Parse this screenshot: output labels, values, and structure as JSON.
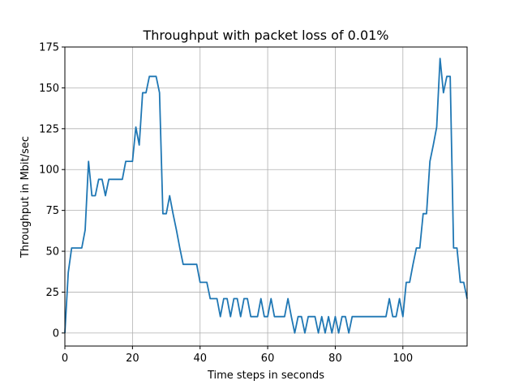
{
  "chart_data": {
    "type": "line",
    "title": "Throughput with packet loss of 0.01%",
    "xlabel": "Time steps in seconds",
    "ylabel": "Throughput in Mbit/sec",
    "xlim": [
      0,
      119
    ],
    "ylim": [
      -8,
      175
    ],
    "grid": true,
    "x_ticks": [
      0,
      20,
      40,
      60,
      80,
      100
    ],
    "y_ticks": [
      0,
      25,
      50,
      75,
      100,
      125,
      150,
      175
    ],
    "line_color": "#1f77b4",
    "series": [
      {
        "x": [
          0,
          1,
          2,
          3,
          4,
          5,
          6,
          7,
          8,
          9,
          10,
          11,
          12,
          13,
          14,
          15,
          16,
          17,
          18,
          19,
          20,
          21,
          22,
          23,
          24,
          25,
          26,
          27,
          28,
          29,
          30,
          31,
          32,
          33,
          34,
          35,
          36,
          37,
          38,
          39,
          40,
          41,
          42,
          43,
          44,
          45,
          46,
          47,
          48,
          49,
          50,
          51,
          52,
          53,
          54,
          55,
          56,
          57,
          58,
          59,
          60,
          61,
          62,
          63,
          64,
          65,
          66,
          67,
          68,
          69,
          70,
          71,
          72,
          73,
          74,
          75,
          76,
          77,
          78,
          79,
          80,
          81,
          82,
          83,
          84,
          85,
          86,
          87,
          88,
          89,
          90,
          91,
          92,
          93,
          94,
          95,
          96,
          97,
          98,
          99,
          100,
          101,
          102,
          103,
          104,
          105,
          106,
          107,
          108,
          109,
          110,
          111,
          112,
          113,
          114,
          115,
          116,
          117,
          118,
          119
        ],
        "values": [
          0,
          37,
          52,
          52,
          52,
          52,
          63,
          105,
          84,
          84,
          94,
          94,
          84,
          94,
          94,
          94,
          94,
          94,
          105,
          105,
          105,
          126,
          115,
          147,
          147,
          157,
          157,
          157,
          147,
          73,
          73,
          84,
          73,
          63,
          52,
          42,
          42,
          42,
          42,
          42,
          31,
          31,
          31,
          21,
          21,
          21,
          10,
          21,
          21,
          10,
          21,
          21,
          10,
          21,
          21,
          10,
          10,
          10,
          21,
          10,
          10,
          21,
          10,
          10,
          10,
          10,
          21,
          10,
          0,
          10,
          10,
          0,
          10,
          10,
          10,
          0,
          10,
          0,
          10,
          0,
          10,
          0,
          10,
          10,
          0,
          10,
          10,
          10,
          10,
          10,
          10,
          10,
          10,
          10,
          10,
          10,
          21,
          10,
          10,
          21,
          10,
          31,
          31,
          42,
          52,
          52,
          73,
          73,
          105,
          115,
          126,
          168,
          147,
          157,
          157,
          52,
          52,
          31,
          31,
          21
        ]
      }
    ]
  }
}
